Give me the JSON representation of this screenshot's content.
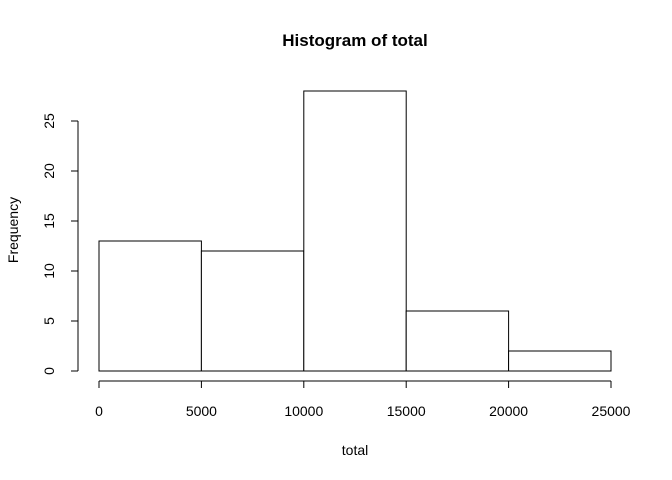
{
  "chart_data": {
    "type": "bar",
    "subtype": "histogram",
    "title": "Histogram of total",
    "xlabel": "total",
    "ylabel": "Frequency",
    "bins": [
      {
        "start": 0,
        "end": 5000,
        "count": 13
      },
      {
        "start": 5000,
        "end": 10000,
        "count": 12
      },
      {
        "start": 10000,
        "end": 15000,
        "count": 28
      },
      {
        "start": 15000,
        "end": 20000,
        "count": 6
      },
      {
        "start": 20000,
        "end": 25000,
        "count": 2
      }
    ],
    "xlim": [
      0,
      25000
    ],
    "ylim": [
      0,
      28
    ],
    "x_ticks": [
      0,
      5000,
      10000,
      15000,
      20000,
      25000
    ],
    "y_ticks": [
      0,
      5,
      10,
      15,
      20,
      25
    ],
    "grid": false,
    "legend": "none",
    "colors": {
      "bar_fill": "#ffffff",
      "bar_stroke": "#000000",
      "text": "#000000"
    }
  }
}
